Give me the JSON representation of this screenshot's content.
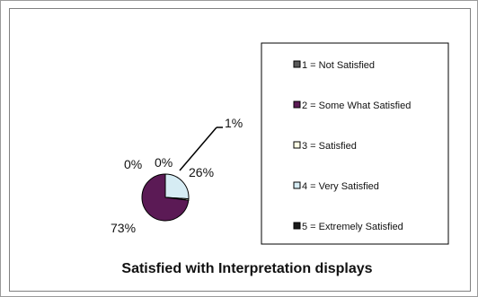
{
  "chart_data": {
    "type": "pie",
    "title": "Satisfied with Interpretation displays",
    "categories": [
      "1 = Not Satisfied",
      "2 = Some What Satisfied",
      "3 = Satisfied",
      "4 = Very Satisfied",
      "5 = Extremely Satisfied"
    ],
    "values": [
      0,
      73,
      1,
      26,
      0
    ],
    "data_labels": [
      "0%",
      "73%",
      "1%",
      "26%",
      "0%"
    ],
    "colors": [
      "#5a5a5a",
      "#5b1a55",
      "#ffffe6",
      "#d6ecf4",
      "#1a1a1a"
    ],
    "legend_position": "right"
  }
}
